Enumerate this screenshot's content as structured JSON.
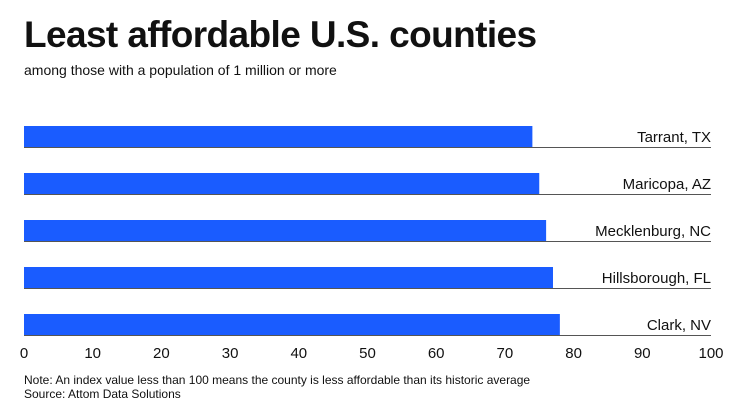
{
  "chart_data": {
    "type": "bar",
    "orientation": "horizontal",
    "title": "Least affordable U.S. counties",
    "subtitle": "among those with a population of 1 million or more",
    "categories": [
      "Tarrant, TX",
      "Maricopa, AZ",
      "Mecklenburg, NC",
      "Hillsborough, FL",
      "Clark, NV"
    ],
    "values": [
      74,
      75,
      76,
      77,
      78
    ],
    "xlim": [
      0,
      100
    ],
    "xticks": [
      "0",
      "10",
      "20",
      "30",
      "40",
      "50",
      "60",
      "70",
      "80",
      "90",
      "100"
    ],
    "xlabel": "",
    "ylabel": "",
    "grid": false,
    "bar_color": "#1a5cff",
    "note": "Note: An index value less than 100 means the county is less affordable than its historic average",
    "source": "Source: Attom Data Solutions"
  }
}
